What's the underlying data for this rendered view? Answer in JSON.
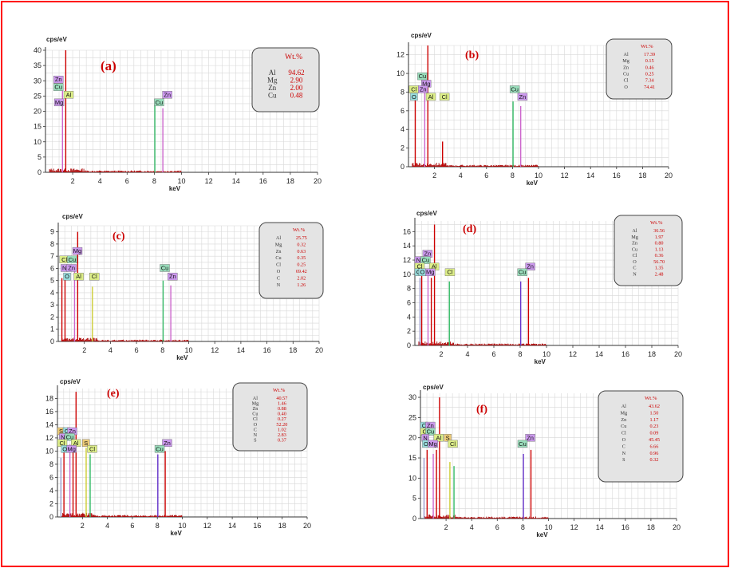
{
  "chart_data": [
    {
      "id": "a",
      "type": "bar",
      "panel_label": "(a)",
      "ylabel": "cps/eV",
      "xlabel": "keV",
      "xlim": [
        0,
        20
      ],
      "ylim": [
        0,
        40
      ],
      "xticks": [
        2,
        4,
        6,
        8,
        10,
        12,
        14,
        16,
        18,
        20
      ],
      "yticks": [
        0,
        5,
        10,
        15,
        20,
        25,
        30,
        35,
        40
      ],
      "table_header": "Wt.%",
      "composition": [
        {
          "element": "Al",
          "wt": "94.62"
        },
        {
          "element": "Mg",
          "wt": "2.90"
        },
        {
          "element": "Zn",
          "wt": "2.00"
        },
        {
          "element": "Cu",
          "wt": "0.48"
        }
      ],
      "peaks": [
        {
          "x": 1.25,
          "y": 27,
          "color": "#cc66cc"
        },
        {
          "x": 1.49,
          "y": 40,
          "color": "#cc0000"
        },
        {
          "x": 8.04,
          "y": 22,
          "color": "#33bb66"
        },
        {
          "x": 8.63,
          "y": 21,
          "color": "#cc66cc"
        }
      ],
      "tags": [
        {
          "text": "Zn",
          "x": 0.6,
          "y": 29.5,
          "kind": "Zn"
        },
        {
          "text": "Cu",
          "x": 0.6,
          "y": 27,
          "kind": "Cu"
        },
        {
          "text": "Al",
          "x": 1.35,
          "y": 24.5,
          "kind": "Al"
        },
        {
          "text": "Mg",
          "x": 0.65,
          "y": 22,
          "kind": "Mg"
        },
        {
          "text": "Zn",
          "x": 8.6,
          "y": 24.5,
          "kind": "Zn"
        },
        {
          "text": "Cu",
          "x": 8.0,
          "y": 22,
          "kind": "Cu"
        }
      ]
    },
    {
      "id": "b",
      "type": "bar",
      "panel_label": "(b)",
      "ylabel": "cps/eV",
      "xlabel": "keV",
      "xlim": [
        0,
        20
      ],
      "ylim": [
        0,
        13
      ],
      "xticks": [
        2,
        4,
        6,
        8,
        10,
        12,
        14,
        16,
        18,
        20
      ],
      "yticks": [
        0,
        2,
        4,
        6,
        8,
        10,
        12
      ],
      "table_header": "Wt.%",
      "composition": [
        {
          "element": "Al",
          "wt": "17.39"
        },
        {
          "element": "Mg",
          "wt": "0.15"
        },
        {
          "element": "Zn",
          "wt": "0.46"
        },
        {
          "element": "Cu",
          "wt": "0.25"
        },
        {
          "element": "Cl",
          "wt": "7.34"
        },
        {
          "element": "O",
          "wt": "74.41"
        }
      ],
      "peaks": [
        {
          "x": 0.52,
          "y": 7.5,
          "color": "#cc0000"
        },
        {
          "x": 1.25,
          "y": 8,
          "color": "#cc66cc"
        },
        {
          "x": 1.49,
          "y": 13,
          "color": "#cc0000"
        },
        {
          "x": 2.62,
          "y": 2.7,
          "color": "#cc0000"
        },
        {
          "x": 8.04,
          "y": 7,
          "color": "#33bb66"
        },
        {
          "x": 8.63,
          "y": 6.5,
          "color": "#cc66cc"
        }
      ],
      "tags": [
        {
          "text": "Cu",
          "x": 0.7,
          "y": 9.4,
          "kind": "Cu"
        },
        {
          "text": "Mg",
          "x": 1.0,
          "y": 8.6,
          "kind": "Mg"
        },
        {
          "text": "Cl",
          "x": 0.05,
          "y": 8.0,
          "kind": "Cl"
        },
        {
          "text": "Zn",
          "x": 0.75,
          "y": 8.0,
          "kind": "Zn"
        },
        {
          "text": "O",
          "x": 0.15,
          "y": 7.2,
          "kind": "O"
        },
        {
          "text": "Al",
          "x": 1.35,
          "y": 7.2,
          "kind": "Al"
        },
        {
          "text": "Cl",
          "x": 2.4,
          "y": 7.2,
          "kind": "Cl"
        },
        {
          "text": "Cu",
          "x": 7.8,
          "y": 8.0,
          "kind": "Cu"
        },
        {
          "text": "Zn",
          "x": 8.4,
          "y": 7.2,
          "kind": "Zn"
        }
      ]
    },
    {
      "id": "c",
      "type": "bar",
      "panel_label": "(c)",
      "ylabel": "cps/eV",
      "xlabel": "keV",
      "xlim": [
        0,
        20
      ],
      "ylim": [
        0,
        9.5
      ],
      "xticks": [
        2,
        4,
        6,
        8,
        10,
        12,
        14,
        16,
        18,
        20
      ],
      "yticks": [
        0,
        1,
        2,
        3,
        4,
        5,
        6,
        7,
        8,
        9
      ],
      "table_header": "Wt.%",
      "composition": [
        {
          "element": "Al",
          "wt": "25.75"
        },
        {
          "element": "Mg",
          "wt": "0.32"
        },
        {
          "element": "Zn",
          "wt": "0.63"
        },
        {
          "element": "Cu",
          "wt": "0.35"
        },
        {
          "element": "Cl",
          "wt": "0.25"
        },
        {
          "element": "O",
          "wt": "69.42"
        },
        {
          "element": "C",
          "wt": "2.02"
        },
        {
          "element": "N",
          "wt": "1.26"
        }
      ],
      "peaks": [
        {
          "x": 0.28,
          "y": 5.2,
          "color": "#cc0000"
        },
        {
          "x": 0.52,
          "y": 5.5,
          "color": "#cc0000"
        },
        {
          "x": 1.25,
          "y": 6,
          "color": "#cc66cc"
        },
        {
          "x": 1.49,
          "y": 9,
          "color": "#cc0000"
        },
        {
          "x": 2.62,
          "y": 4.5,
          "color": "#cccc33"
        },
        {
          "x": 8.04,
          "y": 5,
          "color": "#33bb66"
        },
        {
          "x": 8.63,
          "y": 4.6,
          "color": "#cc66cc"
        }
      ],
      "tags": [
        {
          "text": "Mg",
          "x": 1.1,
          "y": 7.2,
          "kind": "Mg"
        },
        {
          "text": "Cl",
          "x": 0.1,
          "y": 6.5,
          "kind": "Cl"
        },
        {
          "text": "Cu",
          "x": 0.7,
          "y": 6.5,
          "kind": "Cu"
        },
        {
          "text": "N",
          "x": 0.2,
          "y": 5.8,
          "kind": "N"
        },
        {
          "text": "Zn",
          "x": 0.65,
          "y": 5.8,
          "kind": "Zn"
        },
        {
          "text": "O",
          "x": 0.4,
          "y": 5.1,
          "kind": "O"
        },
        {
          "text": "Al",
          "x": 1.2,
          "y": 5.1,
          "kind": "Al"
        },
        {
          "text": "Cl",
          "x": 2.4,
          "y": 5.1,
          "kind": "Cl"
        },
        {
          "text": "Cu",
          "x": 7.8,
          "y": 5.8,
          "kind": "Cu"
        },
        {
          "text": "Zn",
          "x": 8.4,
          "y": 5.1,
          "kind": "Zn"
        }
      ]
    },
    {
      "id": "d",
      "type": "bar",
      "panel_label": "(d)",
      "ylabel": "cps/eV",
      "xlabel": "keV",
      "xlim": [
        0,
        20
      ],
      "ylim": [
        0,
        17.5
      ],
      "xticks": [
        2,
        4,
        6,
        8,
        10,
        12,
        14,
        16,
        18,
        20
      ],
      "yticks": [
        0,
        2,
        4,
        6,
        8,
        10,
        12,
        14,
        16
      ],
      "table_header": "Wt.%",
      "composition": [
        {
          "element": "Al",
          "wt": "36.56"
        },
        {
          "element": "Mg",
          "wt": "1.97"
        },
        {
          "element": "Zn",
          "wt": "0.80"
        },
        {
          "element": "Cu",
          "wt": "1.13"
        },
        {
          "element": "Cl",
          "wt": "0.36"
        },
        {
          "element": "O",
          "wt": "56.70"
        },
        {
          "element": "C",
          "wt": "1.35"
        },
        {
          "element": "N",
          "wt": "2.48"
        }
      ],
      "peaks": [
        {
          "x": 0.39,
          "y": 9.5,
          "color": "#9999cc"
        },
        {
          "x": 0.52,
          "y": 10,
          "color": "#cc0000"
        },
        {
          "x": 1.0,
          "y": 10.5,
          "color": "#cc66cc"
        },
        {
          "x": 1.25,
          "y": 9.5,
          "color": "#cc0000"
        },
        {
          "x": 1.49,
          "y": 17,
          "color": "#cc0000"
        },
        {
          "x": 2.62,
          "y": 9,
          "color": "#33bb66"
        },
        {
          "x": 8.04,
          "y": 9,
          "color": "#6633cc"
        },
        {
          "x": 8.63,
          "y": 9.5,
          "color": "#cc0000"
        }
      ],
      "tags": [
        {
          "text": "Zn",
          "x": 0.6,
          "y": 12.5,
          "kind": "Zn"
        },
        {
          "text": "N",
          "x": 0.0,
          "y": 11.6,
          "kind": "N"
        },
        {
          "text": "Cu",
          "x": 0.45,
          "y": 11.6,
          "kind": "Cu"
        },
        {
          "text": "Cl",
          "x": 0.0,
          "y": 10.7,
          "kind": "Cl"
        },
        {
          "text": "Al",
          "x": 1.1,
          "y": 10.7,
          "kind": "Al"
        },
        {
          "text": "C",
          "x": 0.0,
          "y": 9.9,
          "kind": "C"
        },
        {
          "text": "O",
          "x": 0.3,
          "y": 9.9,
          "kind": "O"
        },
        {
          "text": "Mg",
          "x": 0.8,
          "y": 9.9,
          "kind": "Mg"
        },
        {
          "text": "Cl",
          "x": 2.3,
          "y": 9.9,
          "kind": "Cl"
        },
        {
          "text": "Zn",
          "x": 8.4,
          "y": 10.7,
          "kind": "Zn"
        },
        {
          "text": "Cu",
          "x": 7.8,
          "y": 9.9,
          "kind": "Cu"
        }
      ]
    },
    {
      "id": "e",
      "type": "bar",
      "panel_label": "(e)",
      "ylabel": "cps/eV",
      "xlabel": "keV",
      "xlim": [
        0,
        20
      ],
      "ylim": [
        0,
        19.5
      ],
      "xticks": [
        2,
        4,
        6,
        8,
        10,
        12,
        14,
        16,
        18,
        20
      ],
      "yticks": [
        0,
        2,
        4,
        6,
        8,
        10,
        12,
        14,
        16,
        18
      ],
      "table_header": "Wt.%",
      "composition": [
        {
          "element": "Al",
          "wt": "40.57"
        },
        {
          "element": "Mg",
          "wt": "1.46"
        },
        {
          "element": "Zn",
          "wt": "0.88"
        },
        {
          "element": "Cu",
          "wt": "0.40"
        },
        {
          "element": "Cl",
          "wt": "0.27"
        },
        {
          "element": "O",
          "wt": "52.20"
        },
        {
          "element": "C",
          "wt": "1.02"
        },
        {
          "element": "N",
          "wt": "2.83"
        },
        {
          "element": "S",
          "wt": "0.37"
        }
      ],
      "peaks": [
        {
          "x": 0.28,
          "y": 9,
          "color": "#9999cc"
        },
        {
          "x": 0.52,
          "y": 10.5,
          "color": "#cc0000"
        },
        {
          "x": 1.0,
          "y": 11,
          "color": "#cc66cc"
        },
        {
          "x": 1.25,
          "y": 10,
          "color": "#cc0000"
        },
        {
          "x": 1.49,
          "y": 19,
          "color": "#cc0000"
        },
        {
          "x": 2.3,
          "y": 10.5,
          "color": "#cccc33"
        },
        {
          "x": 2.62,
          "y": 9.5,
          "color": "#33bb66"
        },
        {
          "x": 8.04,
          "y": 9.5,
          "color": "#6633cc"
        },
        {
          "x": 8.63,
          "y": 10,
          "color": "#cc0000"
        }
      ],
      "tags": [
        {
          "text": "S",
          "x": 0.0,
          "y": 12.6,
          "kind": "S"
        },
        {
          "text": "C",
          "x": 0.45,
          "y": 12.6,
          "kind": "C"
        },
        {
          "text": "Zn",
          "x": 0.8,
          "y": 12.6,
          "kind": "Zn"
        },
        {
          "text": "N",
          "x": 0.15,
          "y": 11.7,
          "kind": "N"
        },
        {
          "text": "Cu",
          "x": 0.6,
          "y": 11.7,
          "kind": "Cu"
        },
        {
          "text": "Cl",
          "x": 0.0,
          "y": 10.8,
          "kind": "Cl"
        },
        {
          "text": "Al",
          "x": 1.1,
          "y": 10.8,
          "kind": "Al"
        },
        {
          "text": "S",
          "x": 2.0,
          "y": 10.8,
          "kind": "S"
        },
        {
          "text": "O",
          "x": 0.3,
          "y": 9.9,
          "kind": "O"
        },
        {
          "text": "Mg",
          "x": 0.75,
          "y": 9.9,
          "kind": "Mg"
        },
        {
          "text": "Cl",
          "x": 2.4,
          "y": 9.9,
          "kind": "Cl"
        },
        {
          "text": "Zn",
          "x": 8.4,
          "y": 10.8,
          "kind": "Zn"
        },
        {
          "text": "Cu",
          "x": 7.8,
          "y": 9.9,
          "kind": "Cu"
        }
      ]
    },
    {
      "id": "f",
      "type": "bar",
      "panel_label": "(f)",
      "ylabel": "cps/eV",
      "xlabel": "keV",
      "xlim": [
        0,
        20
      ],
      "ylim": [
        0,
        31
      ],
      "xticks": [
        2,
        4,
        6,
        8,
        10,
        12,
        14,
        16,
        18,
        20
      ],
      "yticks": [
        0,
        5,
        10,
        15,
        20,
        25,
        30
      ],
      "table_header": "Wt.%",
      "composition": [
        {
          "element": "Al",
          "wt": "43.62"
        },
        {
          "element": "Mg",
          "wt": "1.50"
        },
        {
          "element": "Zn",
          "wt": "1.17"
        },
        {
          "element": "Cu",
          "wt": "0.23"
        },
        {
          "element": "Cl",
          "wt": "0.09"
        },
        {
          "element": "O",
          "wt": "45.45"
        },
        {
          "element": "C",
          "wt": "6.66"
        },
        {
          "element": "N",
          "wt": "0.96"
        },
        {
          "element": "S",
          "wt": "0.32"
        }
      ],
      "peaks": [
        {
          "x": 0.28,
          "y": 15,
          "color": "#9999cc"
        },
        {
          "x": 0.52,
          "y": 17,
          "color": "#cc0000"
        },
        {
          "x": 1.0,
          "y": 16,
          "color": "#cc66cc"
        },
        {
          "x": 1.25,
          "y": 17,
          "color": "#cc0000"
        },
        {
          "x": 1.49,
          "y": 30,
          "color": "#cc0000"
        },
        {
          "x": 2.3,
          "y": 14,
          "color": "#cccc33"
        },
        {
          "x": 2.62,
          "y": 13,
          "color": "#33bb66"
        },
        {
          "x": 8.04,
          "y": 16,
          "color": "#6633cc"
        },
        {
          "x": 8.63,
          "y": 17,
          "color": "#cc0000"
        }
      ],
      "tags": [
        {
          "text": "C",
          "x": 0.0,
          "y": 22.3,
          "kind": "C"
        },
        {
          "text": "Zn",
          "x": 0.4,
          "y": 22.3,
          "kind": "Zn"
        },
        {
          "text": "Cl",
          "x": 0.0,
          "y": 20.8,
          "kind": "Cl"
        },
        {
          "text": "Cu",
          "x": 0.4,
          "y": 20.8,
          "kind": "Cu"
        },
        {
          "text": "N",
          "x": 0.1,
          "y": 19.3,
          "kind": "N"
        },
        {
          "text": "Al",
          "x": 1.05,
          "y": 19.3,
          "kind": "Al"
        },
        {
          "text": "S",
          "x": 1.85,
          "y": 19.3,
          "kind": "S"
        },
        {
          "text": "O",
          "x": 0.15,
          "y": 17.8,
          "kind": "O"
        },
        {
          "text": "Mg",
          "x": 0.6,
          "y": 17.8,
          "kind": "Mg"
        },
        {
          "text": "Cl",
          "x": 2.15,
          "y": 17.8,
          "kind": "Cl"
        },
        {
          "text": "Zn",
          "x": 8.2,
          "y": 19.3,
          "kind": "Zn"
        },
        {
          "text": "Cu",
          "x": 7.6,
          "y": 17.8,
          "kind": "Cu"
        }
      ]
    }
  ],
  "tag_colors": {
    "Zn": "#cc99ee",
    "Cu": "#99ddbb",
    "Al": "#ddee88",
    "Mg": "#cc99ee",
    "Cl": "#ddee88",
    "O": "#99dddd",
    "N": "#cc99ee",
    "C": "#99dddd",
    "S": "#eecc77"
  },
  "colors": {
    "frame": "#ff0000",
    "panel_label": "#cc0000",
    "table_values": "#cc0000",
    "spectrum": "#aa0000"
  }
}
